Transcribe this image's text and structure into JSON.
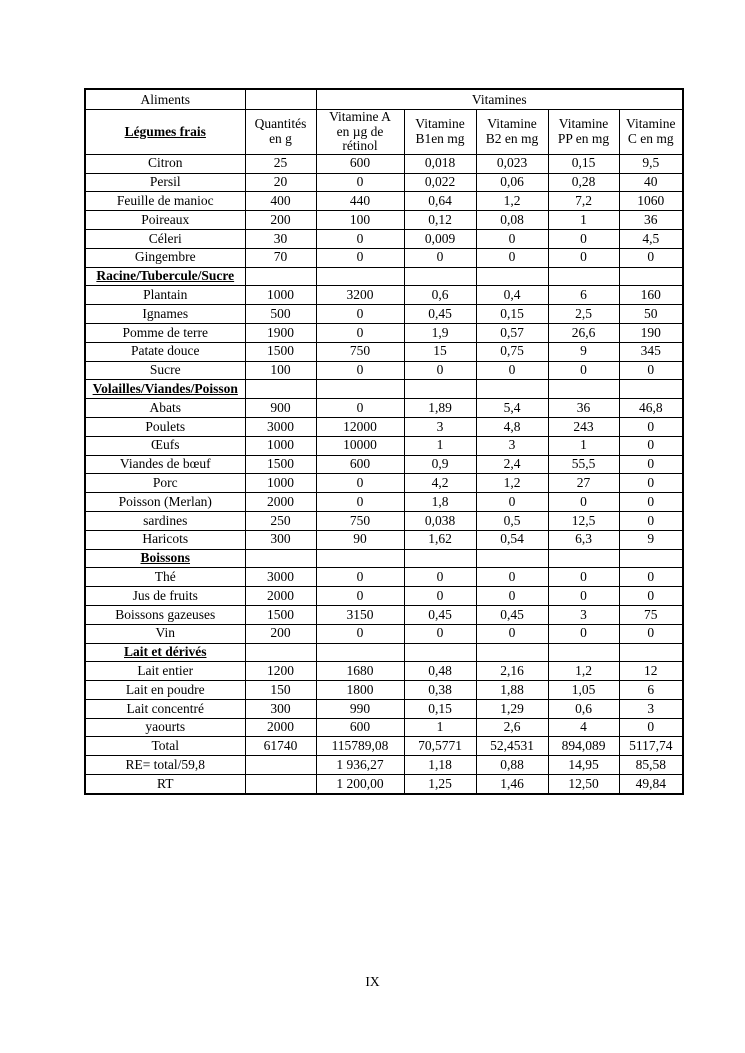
{
  "page": {
    "number": "IX"
  },
  "table": {
    "top_header": {
      "aliments": "Aliments",
      "vitamines": "Vitamines"
    },
    "columns": [
      "Légumes frais",
      "Quantités\nen g",
      "Vitamine A\nen µg de\nrétinol",
      "Vitamine\nB1en mg",
      "Vitamine\nB2 en mg",
      "Vitamine\nPP en mg",
      "Vitamine\nC en mg"
    ],
    "rows": [
      {
        "type": "item",
        "label": "Citron",
        "values": [
          "25",
          "600",
          "0,018",
          "0,023",
          "0,15",
          "9,5"
        ]
      },
      {
        "type": "item",
        "label": "Persil",
        "values": [
          "20",
          "0",
          "0,022",
          "0,06",
          "0,28",
          "40"
        ]
      },
      {
        "type": "item",
        "label": "Feuille de manioc",
        "values": [
          "400",
          "440",
          "0,64",
          "1,2",
          "7,2",
          "1060"
        ]
      },
      {
        "type": "item",
        "label": "Poireaux",
        "values": [
          "200",
          "100",
          "0,12",
          "0,08",
          "1",
          "36"
        ]
      },
      {
        "type": "item",
        "label": "Céleri",
        "values": [
          "30",
          "0",
          "0,009",
          "0",
          "0",
          "4,5"
        ]
      },
      {
        "type": "item",
        "label": "Gingembre",
        "values": [
          "70",
          "0",
          "0",
          "0",
          "0",
          "0"
        ]
      },
      {
        "type": "section",
        "label": "Racine/Tubercule/Sucre",
        "values": [
          "",
          "",
          "",
          "",
          "",
          ""
        ]
      },
      {
        "type": "item",
        "label": "Plantain",
        "values": [
          "1000",
          "3200",
          "0,6",
          "0,4",
          "6",
          "160"
        ]
      },
      {
        "type": "item",
        "label": "Ignames",
        "values": [
          "500",
          "0",
          "0,45",
          "0,15",
          "2,5",
          "50"
        ]
      },
      {
        "type": "item",
        "label": "Pomme de terre",
        "values": [
          "1900",
          "0",
          "1,9",
          "0,57",
          "26,6",
          "190"
        ]
      },
      {
        "type": "item",
        "label": "Patate douce",
        "values": [
          "1500",
          "750",
          "15",
          "0,75",
          "9",
          "345"
        ]
      },
      {
        "type": "item",
        "label": "Sucre",
        "values": [
          "100",
          "0",
          "0",
          "0",
          "0",
          "0"
        ]
      },
      {
        "type": "section",
        "label": "Volailles/Viandes/Poisson",
        "values": [
          "",
          "",
          "",
          "",
          "",
          ""
        ]
      },
      {
        "type": "item",
        "label": "Abats",
        "values": [
          "900",
          "0",
          "1,89",
          "5,4",
          "36",
          "46,8"
        ]
      },
      {
        "type": "item",
        "label": "Poulets",
        "values": [
          "3000",
          "12000",
          "3",
          "4,8",
          "243",
          "0"
        ]
      },
      {
        "type": "item",
        "label": "Œufs",
        "values": [
          "1000",
          "10000",
          "1",
          "3",
          "1",
          "0"
        ]
      },
      {
        "type": "item",
        "label": "Viandes de bœuf",
        "values": [
          "1500",
          "600",
          "0,9",
          "2,4",
          "55,5",
          "0"
        ]
      },
      {
        "type": "item",
        "label": "Porc",
        "values": [
          "1000",
          "0",
          "4,2",
          "1,2",
          "27",
          "0"
        ]
      },
      {
        "type": "item",
        "label": "Poisson (Merlan)",
        "values": [
          "2000",
          "0",
          "1,8",
          "0",
          "0",
          "0"
        ]
      },
      {
        "type": "item",
        "label": "sardines",
        "values": [
          "250",
          "750",
          "0,038",
          "0,5",
          "12,5",
          "0"
        ]
      },
      {
        "type": "item",
        "label": "Haricots",
        "values": [
          "300",
          "90",
          "1,62",
          "0,54",
          "6,3",
          "9"
        ]
      },
      {
        "type": "section",
        "label": "Boissons",
        "values": [
          "",
          "",
          "",
          "",
          "",
          ""
        ]
      },
      {
        "type": "item",
        "label": "Thé",
        "values": [
          "3000",
          "0",
          "0",
          "0",
          "0",
          "0"
        ]
      },
      {
        "type": "item",
        "label": "Jus de fruits",
        "values": [
          "2000",
          "0",
          "0",
          "0",
          "0",
          "0"
        ]
      },
      {
        "type": "item",
        "label": "Boissons gazeuses",
        "values": [
          "1500",
          "3150",
          "0,45",
          "0,45",
          "3",
          "75"
        ]
      },
      {
        "type": "item",
        "label": "Vin",
        "values": [
          "200",
          "0",
          "0",
          "0",
          "0",
          "0"
        ]
      },
      {
        "type": "section",
        "label": "Lait et dérivés",
        "values": [
          "",
          "",
          "",
          "",
          "",
          ""
        ]
      },
      {
        "type": "item",
        "label": "Lait entier",
        "values": [
          "1200",
          "1680",
          "0,48",
          "2,16",
          "1,2",
          "12"
        ]
      },
      {
        "type": "item",
        "label": "Lait en poudre",
        "values": [
          "150",
          "1800",
          "0,38",
          "1,88",
          "1,05",
          "6"
        ]
      },
      {
        "type": "item",
        "label": "Lait concentré",
        "values": [
          "300",
          "990",
          "0,15",
          "1,29",
          "0,6",
          "3"
        ]
      },
      {
        "type": "item",
        "label": "yaourts",
        "values": [
          "2000",
          "600",
          "1",
          "2,6",
          "4",
          "0"
        ]
      },
      {
        "type": "total",
        "label": "Total",
        "values": [
          "61740",
          "115789,08",
          "70,5771",
          "52,4531",
          "894,089",
          "5117,74"
        ]
      },
      {
        "type": "total",
        "label": "RE= total/59,8",
        "values": [
          "",
          "1 936,27",
          "1,18",
          "0,88",
          "14,95",
          "85,58"
        ]
      },
      {
        "type": "total",
        "label": "RT",
        "values": [
          "",
          "1 200,00",
          "1,25",
          "1,46",
          "12,50",
          "49,84"
        ]
      }
    ]
  }
}
